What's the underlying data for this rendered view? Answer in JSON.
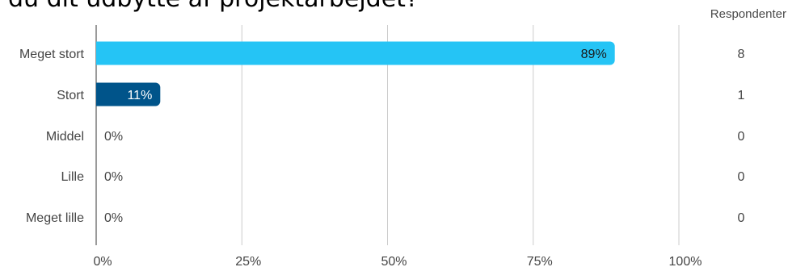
{
  "title": "du dit udbytte af projektarbejdet?",
  "respondents_header": "Respondenter",
  "colors": {
    "primary": "#25c4f5",
    "secondary": "#00548a",
    "grid": "#cccccc",
    "axis": "#9a9a9a"
  },
  "chart_data": {
    "type": "bar",
    "orientation": "horizontal",
    "categories": [
      "Meget stort",
      "Stort",
      "Middel",
      "Lille",
      "Meget lille"
    ],
    "values": [
      89,
      11,
      0,
      0,
      0
    ],
    "value_labels": [
      "89%",
      "11%",
      "0%",
      "0%",
      "0%"
    ],
    "respondents": [
      8,
      1,
      0,
      0,
      0
    ],
    "xlim": [
      0,
      100
    ],
    "xticks": [
      "0%",
      "25%",
      "50%",
      "75%",
      "100%"
    ],
    "bar_colors": [
      "#25c4f5",
      "#00548a",
      "#25c4f5",
      "#25c4f5",
      "#25c4f5"
    ],
    "label_colors": [
      "#1a1a1a",
      "#ffffff",
      "#444444",
      "#444444",
      "#444444"
    ],
    "grid": true,
    "legend": "none"
  }
}
